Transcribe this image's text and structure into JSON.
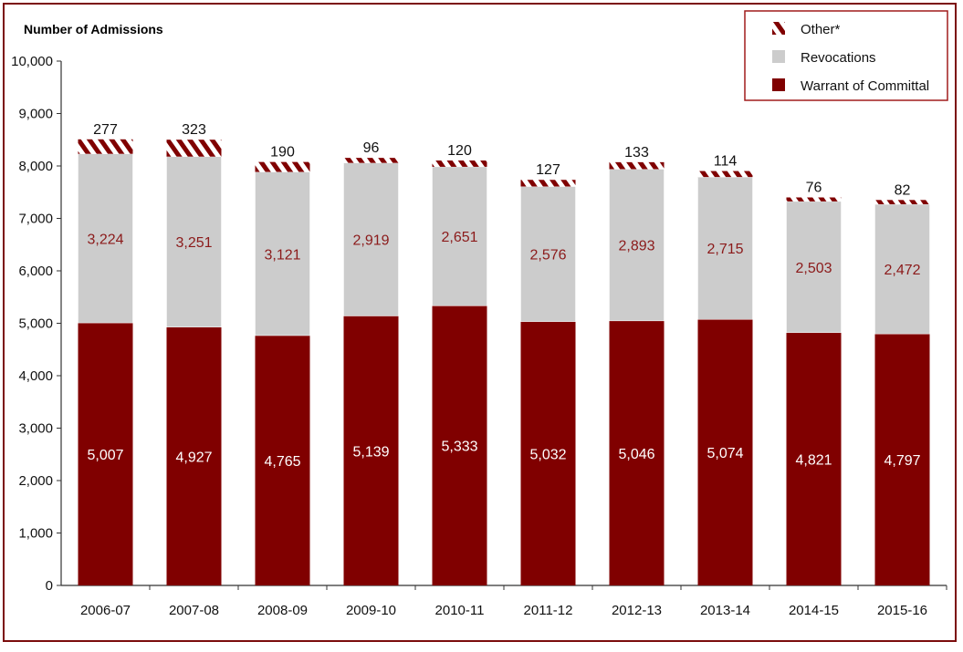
{
  "chart_data": {
    "type": "bar",
    "stacked": true,
    "ylabel": "Number of Admissions",
    "ylim": [
      0,
      10000
    ],
    "yticks": [
      "0",
      "1,000",
      "2,000",
      "3,000",
      "4,000",
      "5,000",
      "6,000",
      "7,000",
      "8,000",
      "9,000",
      "10,000"
    ],
    "categories": [
      "2006-07",
      "2007-08",
      "2008-09",
      "2009-10",
      "2010-11",
      "2011-12",
      "2012-13",
      "2013-14",
      "2014-15",
      "2015-16"
    ],
    "series": [
      {
        "name": "Warrant of Committal",
        "color": "#800000",
        "values": [
          5007,
          4927,
          4765,
          5139,
          5333,
          5032,
          5046,
          5074,
          4821,
          4797
        ],
        "labels": [
          "5,007",
          "4,927",
          "4,765",
          "5,139",
          "5,333",
          "5,032",
          "5,046",
          "5,074",
          "4,821",
          "4,797"
        ]
      },
      {
        "name": "Revocations",
        "color": "#cccccc",
        "values": [
          3224,
          3251,
          3121,
          2919,
          2651,
          2576,
          2893,
          2715,
          2503,
          2472
        ],
        "labels": [
          "3,224",
          "3,251",
          "3,121",
          "2,919",
          "2,651",
          "2,576",
          "2,893",
          "2,715",
          "2,503",
          "2,472"
        ]
      },
      {
        "name": "Other*",
        "color": "#800000",
        "pattern": "diagonal-stripes",
        "values": [
          277,
          323,
          190,
          96,
          120,
          127,
          133,
          114,
          76,
          82
        ],
        "labels": [
          "277",
          "323",
          "190",
          "96",
          "120",
          "127",
          "133",
          "114",
          "76",
          "82"
        ]
      }
    ],
    "legend_position": "top-right",
    "grid": false
  }
}
